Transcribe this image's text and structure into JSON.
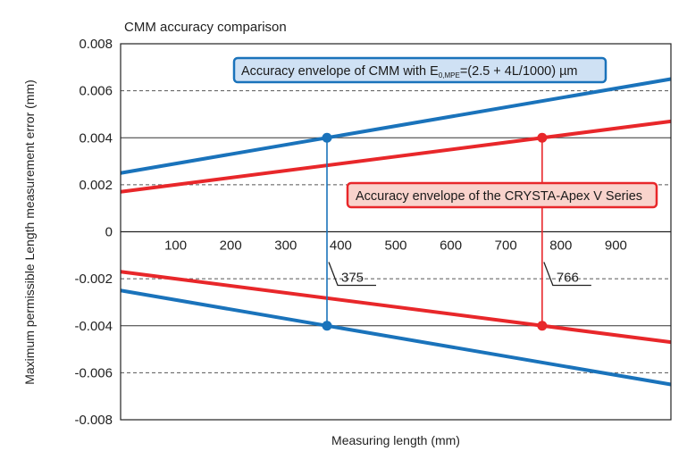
{
  "chart_data": {
    "type": "line",
    "title": "CMM accuracy comparison",
    "xlabel": "Measuring length (mm)",
    "ylabel": "Maximum permissible Length measurement error (mm)",
    "xlim": [
      0,
      1000
    ],
    "ylim": [
      -0.008,
      0.008
    ],
    "x_ticks": [
      100,
      200,
      300,
      400,
      500,
      600,
      700,
      800,
      900
    ],
    "y_ticks": [
      "0.008",
      "0.006",
      "0.004",
      "0.002",
      "0",
      "-0.002",
      "-0.004",
      "-0.006",
      "-0.008"
    ],
    "grid": {
      "dashed_y": [
        0.006,
        0.002,
        -0.002,
        -0.006
      ],
      "solid_y": [
        0.004,
        -0.004
      ]
    },
    "colors": {
      "cmm": "#1a73bb",
      "crysta": "#e8272a"
    },
    "series": [
      {
        "key": "cmm",
        "name": "Accuracy envelope of CMM with E0,MPE=(2.5 + 4L/1000) µm",
        "x": [
          0,
          1000
        ],
        "y": [
          0.0025,
          0.0065
        ],
        "mirror": true
      },
      {
        "key": "crysta",
        "name": "Accuracy envelope of the CRYSTA-Apex V Series",
        "x": [
          0,
          1000
        ],
        "y": [
          0.0017,
          0.0047
        ],
        "mirror": true
      }
    ],
    "legends": {
      "cmm": {
        "prefix": "Accuracy envelope of CMM with E",
        "sub": "0,MPE",
        "suffix": "=(2.5 + 4L/1000) µm"
      },
      "crysta": {
        "text": "Accuracy envelope of the CRYSTA-Apex V Series"
      }
    },
    "markers": [
      {
        "key": "cmm",
        "x": 375,
        "y": 0.004,
        "label": "375"
      },
      {
        "key": "crysta",
        "x": 766,
        "y": 0.004,
        "label": "766"
      }
    ]
  }
}
